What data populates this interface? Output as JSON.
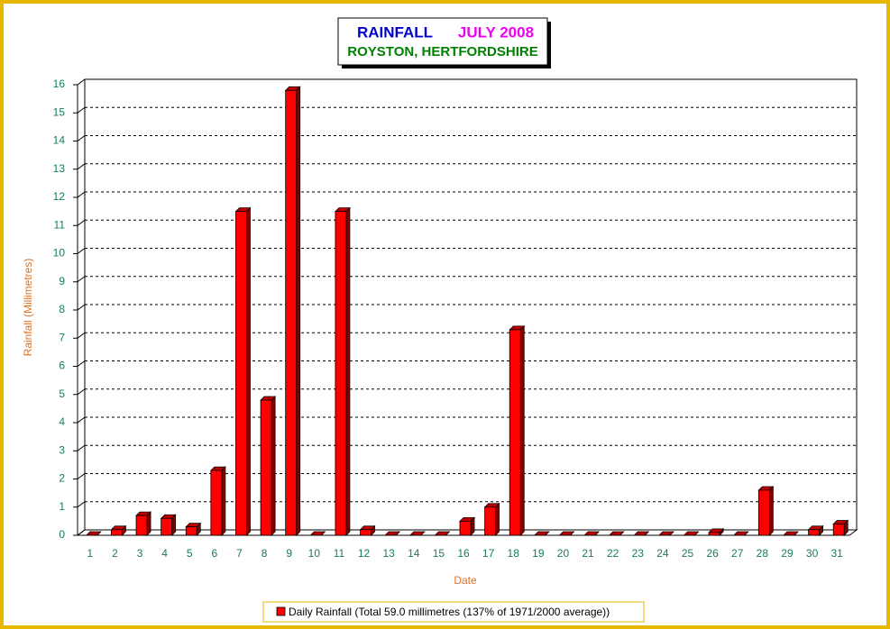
{
  "chart_data": {
    "type": "bar3d",
    "title": "RAINFALL",
    "title_date": "JULY 2008",
    "subtitle": "ROYSTON, HERTFORDSHIRE",
    "x_label": "Date",
    "y_label": "Rainfall  (Millimetres)",
    "categories": [
      "1",
      "2",
      "3",
      "4",
      "5",
      "6",
      "7",
      "8",
      "9",
      "10",
      "11",
      "12",
      "13",
      "14",
      "15",
      "16",
      "17",
      "18",
      "19",
      "20",
      "21",
      "22",
      "23",
      "24",
      "25",
      "26",
      "27",
      "28",
      "29",
      "30",
      "31"
    ],
    "series": [
      {
        "name": "Daily Rainfall (Total 59.0 millimetres (137% of 1971/2000 average))",
        "color": "#ff0000",
        "values": [
          0,
          0.2,
          0.7,
          0.6,
          0.3,
          2.3,
          11.5,
          4.8,
          15.8,
          0,
          11.5,
          0.2,
          0,
          0,
          0,
          0.5,
          1.0,
          7.3,
          0,
          0,
          0,
          0,
          0,
          0,
          0,
          0.1,
          0,
          1.6,
          0,
          0.2,
          0.4
        ]
      }
    ],
    "ylim": [
      0,
      16
    ],
    "yticks": [
      0,
      1,
      2,
      3,
      4,
      5,
      6,
      7,
      8,
      9,
      10,
      11,
      12,
      13,
      14,
      15,
      16
    ],
    "grid": true,
    "legend": "bottom"
  }
}
